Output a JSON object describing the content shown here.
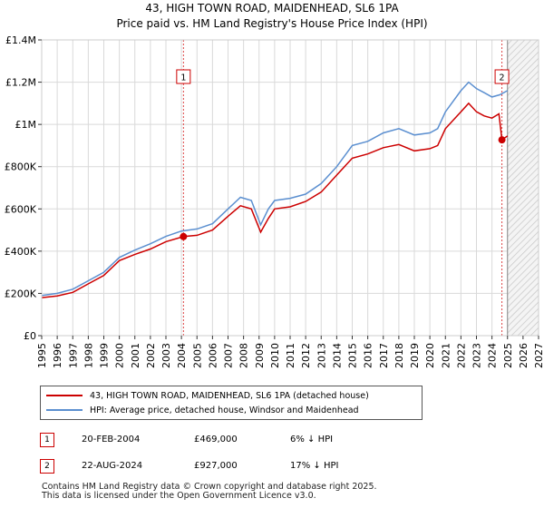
{
  "title_line1": "43, HIGH TOWN ROAD, MAIDENHEAD, SL6 1PA",
  "title_line2": "Price paid vs. HM Land Registry's House Price Index (HPI)",
  "chart_data": {
    "type": "line",
    "title": "43, HIGH TOWN ROAD, MAIDENHEAD, SL6 1PA — Price paid vs. HM Land Registry's House Price Index (HPI)",
    "xlim": [
      1995,
      2027
    ],
    "ylim": [
      0,
      1400000
    ],
    "x_ticks": [
      "1995",
      "1996",
      "1997",
      "1998",
      "1999",
      "2000",
      "2001",
      "2002",
      "2003",
      "2004",
      "2005",
      "2006",
      "2007",
      "2008",
      "2009",
      "2010",
      "2011",
      "2012",
      "2013",
      "2014",
      "2015",
      "2016",
      "2017",
      "2018",
      "2019",
      "2020",
      "2021",
      "2022",
      "2023",
      "2024",
      "2025",
      "2026",
      "2027"
    ],
    "y_ticks": [
      {
        "value": 0,
        "label": "£0"
      },
      {
        "value": 200000,
        "label": "£200K"
      },
      {
        "value": 400000,
        "label": "£400K"
      },
      {
        "value": 600000,
        "label": "£600K"
      },
      {
        "value": 800000,
        "label": "£800K"
      },
      {
        "value": 1000000,
        "label": "£1M"
      },
      {
        "value": 1200000,
        "label": "£1.2M"
      },
      {
        "value": 1400000,
        "label": "£1.4M"
      }
    ],
    "series": [
      {
        "name": "43, HIGH TOWN ROAD, MAIDENHEAD, SL6 1PA (detached house)",
        "color": "#cc0000",
        "x": [
          1995.0,
          1996.0,
          1997.0,
          1998.0,
          1999.0,
          2000.0,
          2001.0,
          2002.0,
          2003.0,
          2004.13,
          2005.0,
          2006.0,
          2007.0,
          2007.8,
          2008.5,
          2009.1,
          2009.6,
          2010.0,
          2011.0,
          2012.0,
          2013.0,
          2014.0,
          2015.0,
          2016.0,
          2017.0,
          2018.0,
          2019.0,
          2020.0,
          2020.5,
          2021.0,
          2022.0,
          2022.5,
          2023.0,
          2023.5,
          2024.0,
          2024.45,
          2024.64,
          2025.0
        ],
        "y": [
          180000,
          188000,
          205000,
          245000,
          285000,
          355000,
          385000,
          410000,
          445000,
          469000,
          475000,
          500000,
          565000,
          615000,
          600000,
          490000,
          555000,
          600000,
          610000,
          635000,
          680000,
          760000,
          840000,
          860000,
          890000,
          905000,
          875000,
          885000,
          900000,
          980000,
          1060000,
          1100000,
          1060000,
          1040000,
          1030000,
          1050000,
          927000,
          945000
        ]
      },
      {
        "name": "HPI: Average price, detached house, Windsor and Maidenhead",
        "color": "#5b8fd0",
        "x": [
          1995.0,
          1996.0,
          1997.0,
          1998.0,
          1999.0,
          2000.0,
          2001.0,
          2002.0,
          2003.0,
          2004.0,
          2005.0,
          2006.0,
          2007.0,
          2007.8,
          2008.5,
          2009.1,
          2009.6,
          2010.0,
          2011.0,
          2012.0,
          2013.0,
          2014.0,
          2015.0,
          2016.0,
          2017.0,
          2018.0,
          2019.0,
          2020.0,
          2020.5,
          2021.0,
          2022.0,
          2022.5,
          2023.0,
          2023.5,
          2024.0,
          2024.5,
          2025.0
        ],
        "y": [
          190000,
          200000,
          220000,
          260000,
          300000,
          370000,
          405000,
          435000,
          470000,
          495000,
          505000,
          530000,
          600000,
          655000,
          640000,
          525000,
          600000,
          640000,
          650000,
          670000,
          720000,
          800000,
          900000,
          920000,
          960000,
          980000,
          950000,
          960000,
          980000,
          1060000,
          1160000,
          1200000,
          1170000,
          1150000,
          1130000,
          1140000,
          1160000
        ]
      }
    ],
    "transactions": [
      {
        "label": "1",
        "date": "20-FEB-2004",
        "x": 2004.13,
        "price": 469000,
        "price_label": "£469,000",
        "hpi": "6% ↓ HPI"
      },
      {
        "label": "2",
        "date": "22-AUG-2024",
        "x": 2024.64,
        "price": 927000,
        "price_label": "£927,000",
        "hpi": "17% ↓ HPI"
      }
    ],
    "forecast_start": 2025.0,
    "legend_position": "bottom"
  },
  "footer_line1": "Contains HM Land Registry data © Crown copyright and database right 2025.",
  "footer_line2": "This data is licensed under the Open Government Licence v3.0."
}
